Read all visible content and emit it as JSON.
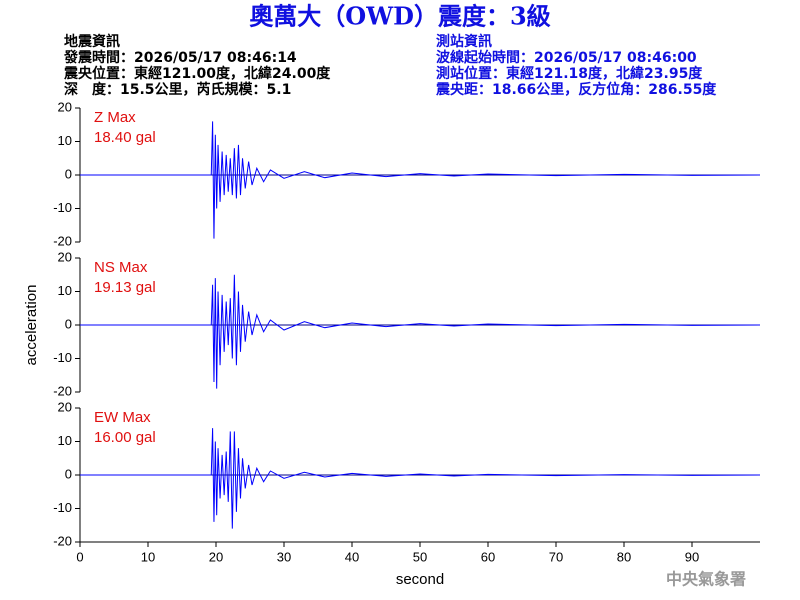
{
  "header": {
    "title": "奧萬大（OWD）震度：3級",
    "left": [
      "地震資訊",
      "發震時間：2026/05/17 08:46:14",
      "震央位置：東經121.00度，北緯24.00度",
      "深　度：15.5公里，芮氏規模：5.1"
    ],
    "right": [
      "測站資訊",
      "波線起始時間：2026/05/17 08:46:00",
      "測站位置：東經121.18度，北緯23.95度",
      "震央距：18.66公里，反方位角：286.55度"
    ]
  },
  "footer": "中央氣象署",
  "chart_data": [
    {
      "type": "line",
      "annotation": [
        "Z Max",
        "18.40 gal"
      ],
      "xlim": [
        0,
        100
      ],
      "ylim": [
        -20,
        20
      ],
      "yticks": [
        20,
        10,
        0,
        -10,
        -20
      ],
      "color": "#0000ff",
      "x": [
        0,
        19.3,
        19.5,
        19.7,
        19.9,
        20.1,
        20.3,
        20.6,
        20.9,
        21.2,
        21.5,
        21.8,
        22.1,
        22.4,
        22.7,
        23.0,
        23.3,
        23.6,
        23.9,
        24.3,
        24.8,
        25.3,
        26,
        27,
        28,
        30,
        33,
        36,
        40,
        45,
        50,
        55,
        60,
        70,
        80,
        90,
        100
      ],
      "values": [
        0,
        0,
        16,
        -19,
        12,
        -10,
        9,
        -8,
        7,
        -6,
        6,
        -5,
        5,
        -6,
        8,
        -7,
        9,
        -6,
        5,
        -4,
        4,
        -3,
        2,
        -2,
        1.5,
        -1,
        1,
        -0.8,
        0.6,
        -0.5,
        0.4,
        -0.3,
        0.3,
        -0.2,
        0.2,
        -0.1,
        0
      ]
    },
    {
      "type": "line",
      "annotation": [
        "NS Max",
        "19.13 gal"
      ],
      "ylabel": "acceleration",
      "xlim": [
        0,
        100
      ],
      "ylim": [
        -20,
        20
      ],
      "yticks": [
        20,
        10,
        0,
        -10,
        -20
      ],
      "color": "#0000ff",
      "x": [
        0,
        19.3,
        19.5,
        19.7,
        19.9,
        20.1,
        20.3,
        20.6,
        20.9,
        21.2,
        21.5,
        21.8,
        22.1,
        22.4,
        22.7,
        23.0,
        23.3,
        23.6,
        23.9,
        24.3,
        24.8,
        25.3,
        26,
        27,
        28,
        30,
        33,
        36,
        40,
        45,
        50,
        55,
        60,
        70,
        80,
        90,
        100
      ],
      "values": [
        0,
        0,
        12,
        -17,
        14,
        -19,
        10,
        -12,
        9,
        -8,
        7,
        -6,
        8,
        -10,
        15,
        -12,
        10,
        -8,
        6,
        -5,
        4,
        -3,
        3,
        -2,
        1.5,
        -1.5,
        1,
        -0.8,
        0.6,
        -0.5,
        0.4,
        -0.3,
        0.3,
        -0.2,
        0.2,
        -0.1,
        0
      ]
    },
    {
      "type": "line",
      "annotation": [
        "EW Max",
        "16.00 gal"
      ],
      "xlabel": "second",
      "xlim": [
        0,
        100
      ],
      "ylim": [
        -20,
        20
      ],
      "yticks": [
        20,
        10,
        0,
        -10,
        -20
      ],
      "xticks": [
        0,
        10,
        20,
        30,
        40,
        50,
        60,
        70,
        80,
        90
      ],
      "color": "#0000ff",
      "x": [
        0,
        19.3,
        19.5,
        19.7,
        19.9,
        20.1,
        20.3,
        20.6,
        20.9,
        21.2,
        21.5,
        21.8,
        22.1,
        22.4,
        22.7,
        23.0,
        23.3,
        23.6,
        23.9,
        24.3,
        24.8,
        25.3,
        26,
        27,
        28,
        30,
        33,
        36,
        40,
        45,
        50,
        55,
        60,
        70,
        80,
        90,
        100
      ],
      "values": [
        0,
        0,
        14,
        -14,
        10,
        -12,
        8,
        -7,
        6,
        -6,
        7,
        -8,
        13,
        -16,
        13,
        -11,
        8,
        -7,
        5,
        -4,
        3,
        -3,
        2,
        -2,
        1.2,
        -1,
        0.8,
        -0.6,
        0.5,
        -0.4,
        0.3,
        -0.3,
        0.2,
        -0.2,
        0.1,
        -0.1,
        0
      ]
    }
  ]
}
